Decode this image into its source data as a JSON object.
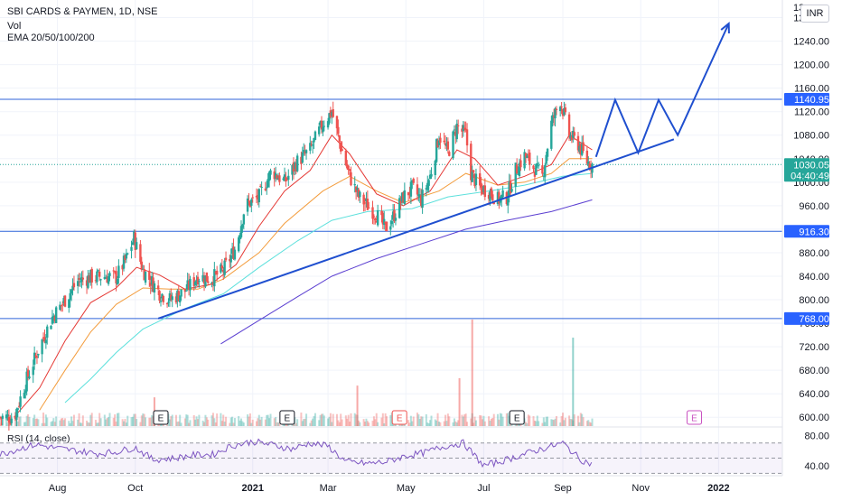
{
  "header": {
    "symbol": "SBI CARDS & PAYMEN, 1D, NSE",
    "vol": "Vol",
    "ema": "EMA 20/50/100/200"
  },
  "currency_button": "INR",
  "colors": {
    "up": "#26a69a",
    "down": "#ef5350",
    "ema20": "#e53935",
    "ema50": "#f39c3c",
    "ema100": "#5ce0dc",
    "ema200": "#5b3fd1",
    "trend": "#1f4fcf",
    "hline": "#2f63d9",
    "rsi": "#7e57c2",
    "current_tag": "#26a69a",
    "level_tag": "#2962ff"
  },
  "chart_data": [
    {
      "type": "candlestick",
      "title": "SBI CARDS & PAYMEN, 1D, NSE",
      "currency": "INR",
      "y_ticks": [
        600,
        640,
        680,
        720,
        760,
        800,
        840,
        880,
        920,
        960,
        1000,
        1040,
        1080,
        1120,
        1160,
        1200,
        1240,
        1280
      ],
      "y_tick_labels": [
        "600.00",
        "640.00",
        "680.00",
        "720.00",
        "760.00",
        "800.00",
        "840.00",
        "880.00",
        "920.00",
        "960.00",
        "1000.00",
        "1040.00",
        "1080.00",
        "1120.00",
        "1160.00",
        "1200.00",
        "1240.00",
        "1280.00"
      ],
      "ylim": [
        585,
        1310
      ],
      "x_tick_labels": [
        {
          "label": "Aug",
          "date": "2020-08-01"
        },
        {
          "label": "Oct",
          "date": "2020-10-01"
        },
        {
          "label": "2021",
          "date": "2021-01-01"
        },
        {
          "label": "Mar",
          "date": "2021-03-01"
        },
        {
          "label": "May",
          "date": "2021-05-01"
        },
        {
          "label": "Jul",
          "date": "2021-07-01"
        },
        {
          "label": "Sep",
          "date": "2021-09-01"
        },
        {
          "label": "Nov",
          "date": "2021-11-01"
        },
        {
          "label": "2022",
          "date": "2022-01-01"
        }
      ],
      "xlim": [
        "2020-06-17",
        "2022-02-20"
      ],
      "horizontal_levels": [
        {
          "value": 1140.95,
          "label": "1140.95"
        },
        {
          "value": 916.3,
          "label": "916.30"
        },
        {
          "value": 768.0,
          "label": "768.00"
        }
      ],
      "current_price": {
        "value": 1030.05,
        "label": "1030.05",
        "countdown": "04:40:49"
      },
      "top_partial_tick": "13",
      "price_path": [
        [
          "2020-06-17",
          600
        ],
        [
          "2020-06-28",
          600
        ],
        [
          "2020-07-08",
          665
        ],
        [
          "2020-07-18",
          720
        ],
        [
          "2020-07-28",
          770
        ],
        [
          "2020-08-07",
          800
        ],
        [
          "2020-08-17",
          832
        ],
        [
          "2020-08-27",
          838
        ],
        [
          "2020-09-06",
          840
        ],
        [
          "2020-09-16",
          838
        ],
        [
          "2020-09-24",
          870
        ],
        [
          "2020-09-30",
          905
        ],
        [
          "2020-10-07",
          850
        ],
        [
          "2020-10-14",
          830
        ],
        [
          "2020-10-20",
          812
        ],
        [
          "2020-10-28",
          800
        ],
        [
          "2020-11-09",
          815
        ],
        [
          "2020-11-19",
          840
        ],
        [
          "2020-11-29",
          835
        ],
        [
          "2020-12-09",
          850
        ],
        [
          "2020-12-19",
          890
        ],
        [
          "2020-12-26",
          960
        ],
        [
          "2021-01-06",
          975
        ],
        [
          "2021-01-16",
          1020
        ],
        [
          "2021-01-26",
          1000
        ],
        [
          "2021-02-05",
          1035
        ],
        [
          "2021-02-15",
          1055
        ],
        [
          "2021-02-25",
          1100
        ],
        [
          "2021-03-04",
          1120
        ],
        [
          "2021-03-11",
          1060
        ],
        [
          "2021-03-18",
          1010
        ],
        [
          "2021-03-25",
          975
        ],
        [
          "2021-04-01",
          960
        ],
        [
          "2021-04-08",
          945
        ],
        [
          "2021-04-15",
          920
        ],
        [
          "2021-04-22",
          945
        ],
        [
          "2021-04-29",
          975
        ],
        [
          "2021-05-06",
          990
        ],
        [
          "2021-05-13",
          970
        ],
        [
          "2021-05-20",
          1010
        ],
        [
          "2021-05-27",
          1080
        ],
        [
          "2021-06-03",
          1050
        ],
        [
          "2021-06-10",
          1095
        ],
        [
          "2021-06-17",
          1080
        ],
        [
          "2021-06-21",
          1015
        ],
        [
          "2021-06-28",
          990
        ],
        [
          "2021-07-05",
          985
        ],
        [
          "2021-07-12",
          970
        ],
        [
          "2021-07-19",
          975
        ],
        [
          "2021-07-26",
          1020
        ],
        [
          "2021-08-02",
          1045
        ],
        [
          "2021-08-09",
          1025
        ],
        [
          "2021-08-16",
          1010
        ],
        [
          "2021-08-23",
          1100
        ],
        [
          "2021-08-30",
          1140
        ],
        [
          "2021-09-06",
          1080
        ],
        [
          "2021-09-13",
          1065
        ],
        [
          "2021-09-20",
          1035
        ],
        [
          "2021-09-24",
          1030
        ]
      ],
      "ema20": [
        [
          "2020-06-28",
          600
        ],
        [
          "2020-07-18",
          650
        ],
        [
          "2020-08-07",
          730
        ],
        [
          "2020-08-27",
          795
        ],
        [
          "2020-09-16",
          820
        ],
        [
          "2020-10-02",
          855
        ],
        [
          "2020-10-20",
          842
        ],
        [
          "2020-11-09",
          818
        ],
        [
          "2020-11-29",
          826
        ],
        [
          "2020-12-19",
          860
        ],
        [
          "2021-01-06",
          925
        ],
        [
          "2021-01-26",
          985
        ],
        [
          "2021-02-15",
          1020
        ],
        [
          "2021-03-04",
          1080
        ],
        [
          "2021-03-18",
          1048
        ],
        [
          "2021-04-08",
          980
        ],
        [
          "2021-04-29",
          960
        ],
        [
          "2021-05-20",
          985
        ],
        [
          "2021-06-10",
          1055
        ],
        [
          "2021-06-24",
          1040
        ],
        [
          "2021-07-12",
          995
        ],
        [
          "2021-08-02",
          1010
        ],
        [
          "2021-08-23",
          1030
        ],
        [
          "2021-09-06",
          1080
        ],
        [
          "2021-09-24",
          1055
        ]
      ],
      "ema50": [
        [
          "2020-07-18",
          612
        ],
        [
          "2020-08-07",
          680
        ],
        [
          "2020-08-27",
          745
        ],
        [
          "2020-09-16",
          792
        ],
        [
          "2020-10-07",
          820
        ],
        [
          "2020-10-28",
          818
        ],
        [
          "2020-11-19",
          818
        ],
        [
          "2020-12-09",
          835
        ],
        [
          "2021-01-06",
          880
        ],
        [
          "2021-01-26",
          930
        ],
        [
          "2021-02-25",
          985
        ],
        [
          "2021-03-18",
          1010
        ],
        [
          "2021-04-08",
          985
        ],
        [
          "2021-04-29",
          965
        ],
        [
          "2021-05-27",
          985
        ],
        [
          "2021-06-17",
          1015
        ],
        [
          "2021-07-12",
          995
        ],
        [
          "2021-08-02",
          1000
        ],
        [
          "2021-08-23",
          1015
        ],
        [
          "2021-09-06",
          1040
        ],
        [
          "2021-09-24",
          1040
        ]
      ],
      "ema100": [
        [
          "2020-08-07",
          625
        ],
        [
          "2020-08-27",
          665
        ],
        [
          "2020-09-16",
          710
        ],
        [
          "2020-10-07",
          750
        ],
        [
          "2020-11-09",
          785
        ],
        [
          "2020-12-09",
          810
        ],
        [
          "2021-01-06",
          855
        ],
        [
          "2021-02-05",
          900
        ],
        [
          "2021-03-04",
          935
        ],
        [
          "2021-04-01",
          950
        ],
        [
          "2021-05-06",
          955
        ],
        [
          "2021-06-03",
          975
        ],
        [
          "2021-07-05",
          985
        ],
        [
          "2021-08-02",
          995
        ],
        [
          "2021-09-01",
          1010
        ],
        [
          "2021-09-24",
          1015
        ]
      ],
      "ema200": [
        [
          "2020-12-07",
          725
        ],
        [
          "2021-01-06",
          765
        ],
        [
          "2021-02-05",
          805
        ],
        [
          "2021-03-04",
          840
        ],
        [
          "2021-04-08",
          870
        ],
        [
          "2021-05-13",
          895
        ],
        [
          "2021-06-17",
          920
        ],
        [
          "2021-07-19",
          935
        ],
        [
          "2021-08-23",
          950
        ],
        [
          "2021-09-24",
          970
        ]
      ],
      "drawings": {
        "trendline": [
          [
            "2020-10-19",
            768
          ],
          [
            "2021-11-27",
            1073
          ]
        ],
        "projection": [
          [
            "2021-09-27",
            1043
          ],
          [
            "2021-10-12",
            1140
          ],
          [
            "2021-10-30",
            1050
          ],
          [
            "2021-11-15",
            1140
          ],
          [
            "2021-11-30",
            1080
          ],
          [
            "2022-01-09",
            1270
          ]
        ]
      },
      "volume": {
        "baseline": "2020-06-17",
        "spikes": [
          {
            "date": "2021-06-22",
            "value": 1.0
          },
          {
            "date": "2021-09-09",
            "value": 0.83
          },
          {
            "date": "2021-06-12",
            "value": 0.45
          },
          {
            "date": "2021-03-24",
            "value": 0.38
          },
          {
            "date": "2020-10-16",
            "value": 0.27
          }
        ]
      },
      "earnings_markers": [
        {
          "date": "2020-10-21",
          "label": "E",
          "type": "past"
        },
        {
          "date": "2021-01-28",
          "label": "E",
          "type": "past"
        },
        {
          "date": "2021-04-26",
          "label": "E",
          "type": "past-negative"
        },
        {
          "date": "2021-07-27",
          "label": "E",
          "type": "past"
        },
        {
          "date": "2021-12-13",
          "label": "E",
          "type": "upcoming"
        }
      ]
    },
    {
      "type": "line",
      "title": "RSI (14, close)",
      "y_ticks": [
        40,
        80
      ],
      "y_tick_labels": [
        "40.00",
        "80.00"
      ],
      "ylim": [
        28,
        90
      ],
      "bands": [
        30,
        50,
        70
      ],
      "x": [
        "2020-06-17",
        "2020-07-01",
        "2020-07-15",
        "2020-08-01",
        "2020-08-15",
        "2020-09-01",
        "2020-09-15",
        "2020-10-01",
        "2020-10-15",
        "2020-11-01",
        "2020-11-15",
        "2020-12-01",
        "2020-12-15",
        "2021-01-01",
        "2021-01-15",
        "2021-02-01",
        "2021-02-15",
        "2021-03-01",
        "2021-03-15",
        "2021-04-01",
        "2021-04-15",
        "2021-05-01",
        "2021-05-15",
        "2021-06-01",
        "2021-06-15",
        "2021-07-01",
        "2021-07-15",
        "2021-08-01",
        "2021-08-15",
        "2021-09-01",
        "2021-09-15",
        "2021-09-24"
      ],
      "values": [
        55,
        62,
        68,
        63,
        60,
        56,
        58,
        64,
        48,
        50,
        54,
        55,
        66,
        72,
        68,
        62,
        70,
        66,
        45,
        43,
        45,
        53,
        57,
        66,
        70,
        40,
        46,
        55,
        62,
        70,
        48,
        42
      ]
    }
  ]
}
